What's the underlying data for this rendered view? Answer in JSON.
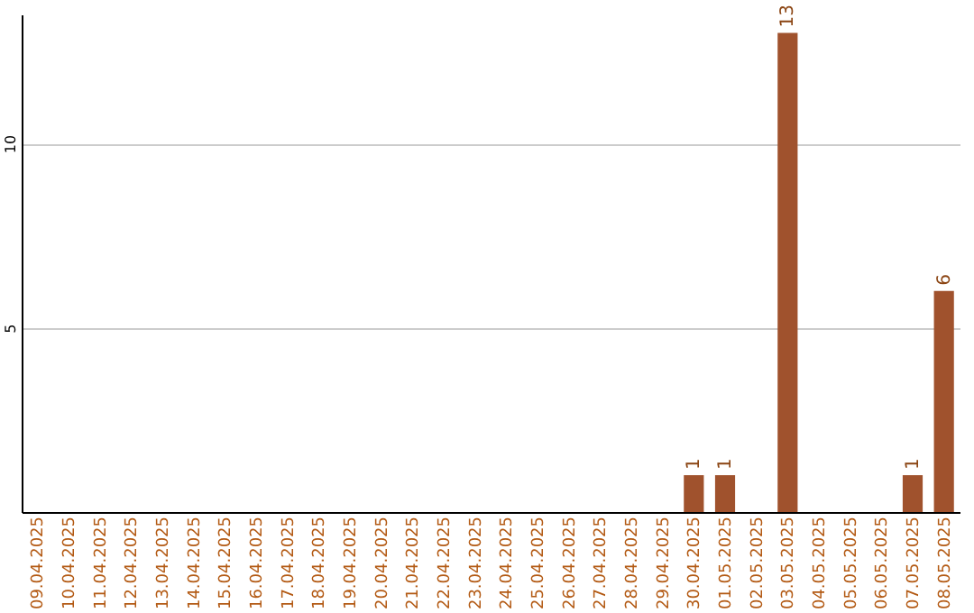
{
  "chart_data": {
    "type": "bar",
    "categories": [
      "09.04.2025",
      "10.04.2025",
      "11.04.2025",
      "12.04.2025",
      "13.04.2025",
      "14.04.2025",
      "15.04.2025",
      "16.04.2025",
      "17.04.2025",
      "18.04.2025",
      "19.04.2025",
      "20.04.2025",
      "21.04.2025",
      "22.04.2025",
      "23.04.2025",
      "24.04.2025",
      "25.04.2025",
      "26.04.2025",
      "27.04.2025",
      "28.04.2025",
      "29.04.2025",
      "30.04.2025",
      "01.05.2025",
      "02.05.2025",
      "03.05.2025",
      "04.05.2025",
      "05.05.2025",
      "06.05.2025",
      "07.05.2025",
      "08.05.2025"
    ],
    "values": [
      0,
      0,
      0,
      0,
      0,
      0,
      0,
      0,
      0,
      0,
      0,
      0,
      0,
      0,
      0,
      0,
      0,
      0,
      0,
      0,
      0,
      1,
      1,
      0,
      13,
      0,
      0,
      0,
      1,
      6
    ],
    "value_labels": [
      null,
      null,
      null,
      null,
      null,
      null,
      null,
      null,
      null,
      null,
      null,
      null,
      null,
      null,
      null,
      null,
      null,
      null,
      null,
      null,
      null,
      "1",
      "1",
      null,
      "13",
      null,
      null,
      null,
      "1",
      "6"
    ],
    "color": "#a0522d",
    "ylim": [
      0,
      13.5
    ],
    "yticks": [
      5,
      10
    ],
    "grid": "y"
  }
}
